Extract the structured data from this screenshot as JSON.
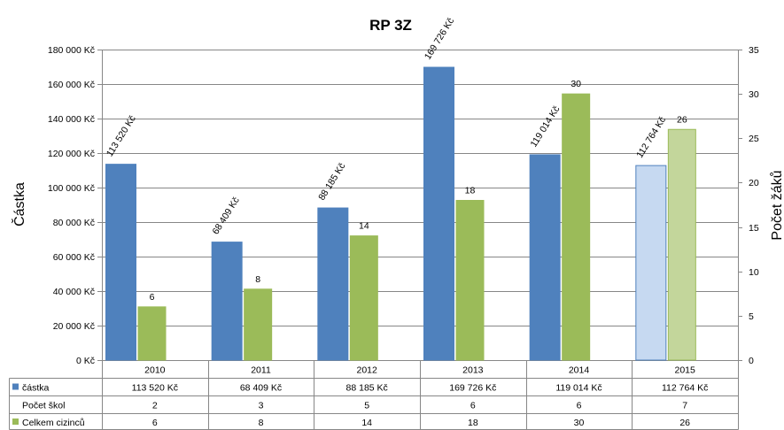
{
  "chart_data": {
    "type": "bar",
    "title": "RP 3Z",
    "ylabel": "Částka",
    "y2label": "Počet žáků",
    "categories": [
      "2010",
      "2011",
      "2012",
      "2013",
      "2014",
      "2015"
    ],
    "ylim": [
      0,
      180000
    ],
    "y2lim": [
      0,
      35
    ],
    "grid": true,
    "y_ticks": [
      {
        "value": 0,
        "label": "0 Kč"
      },
      {
        "value": 20000,
        "label": "20 000 Kč"
      },
      {
        "value": 40000,
        "label": "40 000 Kč"
      },
      {
        "value": 60000,
        "label": "60 000 Kč"
      },
      {
        "value": 80000,
        "label": "80 000 Kč"
      },
      {
        "value": 100000,
        "label": "100 000 Kč"
      },
      {
        "value": 120000,
        "label": "120 000 Kč"
      },
      {
        "value": 140000,
        "label": "140 000 Kč"
      },
      {
        "value": 160000,
        "label": "160 000 Kč"
      },
      {
        "value": 180000,
        "label": "180 000 Kč"
      }
    ],
    "y2_ticks": [
      {
        "value": 0,
        "label": "0"
      },
      {
        "value": 5,
        "label": "5"
      },
      {
        "value": 10,
        "label": "10"
      },
      {
        "value": 15,
        "label": "15"
      },
      {
        "value": 20,
        "label": "20"
      },
      {
        "value": 25,
        "label": "25"
      },
      {
        "value": 30,
        "label": "30"
      },
      {
        "value": 35,
        "label": "35"
      }
    ],
    "series": [
      {
        "name": "částka",
        "secondary_axis": false,
        "color": "#4f81bd",
        "point_colors": [
          "#4f81bd",
          "#4f81bd",
          "#4f81bd",
          "#4f81bd",
          "#4f81bd",
          "#c6d9f1"
        ],
        "values": [
          113520,
          68409,
          88185,
          169726,
          119014,
          112764
        ],
        "labels": [
          "113 520 Kč",
          "68 409 Kč",
          "88 185 Kč",
          "169 726 Kč",
          "119 014 Kč",
          "112 764 Kč"
        ]
      },
      {
        "name": "Celkem cizinců",
        "secondary_axis": true,
        "color": "#9bbb59",
        "point_colors": [
          "#9bbb59",
          "#9bbb59",
          "#9bbb59",
          "#9bbb59",
          "#9bbb59",
          "#c3d69b"
        ],
        "values": [
          6,
          8,
          14,
          18,
          30,
          26
        ],
        "labels": [
          "6",
          "8",
          "14",
          "18",
          "30",
          "26"
        ]
      }
    ],
    "data_table": {
      "extra_rows": [
        {
          "label": "Počet škol",
          "values": [
            "2",
            "3",
            "5",
            "6",
            "6",
            "7"
          ]
        }
      ]
    }
  }
}
